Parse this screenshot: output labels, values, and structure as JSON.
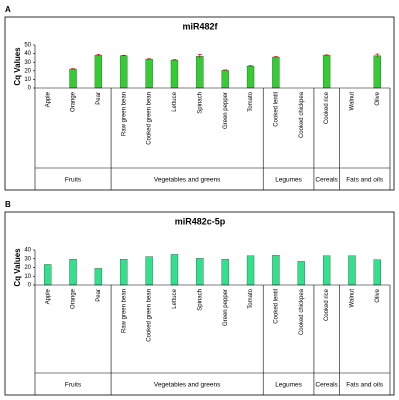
{
  "chart_data": [
    {
      "type": "bar",
      "panel_label": "A",
      "title": "miR482f",
      "y_label": "Cq Values",
      "color": "#33cc33",
      "categories": [
        "Apple",
        "Orange",
        "Pear",
        "Raw green bean",
        "Cooked green bean",
        "Lettuce",
        "Spinach",
        "Green pepper",
        "Tomato",
        "Cooked lentil",
        "Cooked chickpea",
        "Cooked rice",
        "Walnut",
        "Olive"
      ],
      "values": [
        null,
        22,
        38,
        37.5,
        33.5,
        32.5,
        37,
        20.5,
        25.5,
        36,
        null,
        38,
        null,
        37.5
      ],
      "errors": [
        null,
        0.5,
        1,
        0.5,
        0.5,
        0.5,
        2,
        0.5,
        0.5,
        0.5,
        null,
        0.5,
        null,
        2
      ],
      "groups": [
        {
          "label": "Fruits",
          "count": 3
        },
        {
          "label": "Vegetables and greens",
          "count": 6
        },
        {
          "label": "Legumes",
          "count": 2
        },
        {
          "label": "Cereals",
          "count": 1
        },
        {
          "label": "Fats and oils",
          "count": 2
        }
      ],
      "ylim": [
        0,
        50
      ],
      "yticks": [
        0,
        10,
        20,
        30,
        40,
        50
      ]
    },
    {
      "type": "bar",
      "panel_label": "B",
      "title": "miR482c-5p",
      "y_label": "Cq Values",
      "color": "#33e08c",
      "categories": [
        "Apple",
        "Orange",
        "Pear",
        "Raw green bean",
        "Cooked green bean",
        "Lettuce",
        "Spinach",
        "Green pepper",
        "Tomato",
        "Cooked lentil",
        "Cooked chickpea",
        "Cooked rice",
        "Walnut",
        "Olive"
      ],
      "values": [
        23.5,
        29.5,
        19,
        29.5,
        32.5,
        35,
        30.5,
        29.5,
        33.5,
        34,
        27,
        33.5,
        33.5,
        29
      ],
      "groups": [
        {
          "label": "Fruits",
          "count": 3
        },
        {
          "label": "Vegetables and greens",
          "count": 6
        },
        {
          "label": "Legumes",
          "count": 2
        },
        {
          "label": "Cereals",
          "count": 1
        },
        {
          "label": "Fats and oils",
          "count": 2
        }
      ],
      "ylim": [
        0,
        40
      ],
      "yticks": [
        0,
        10,
        20,
        30,
        40
      ]
    }
  ]
}
